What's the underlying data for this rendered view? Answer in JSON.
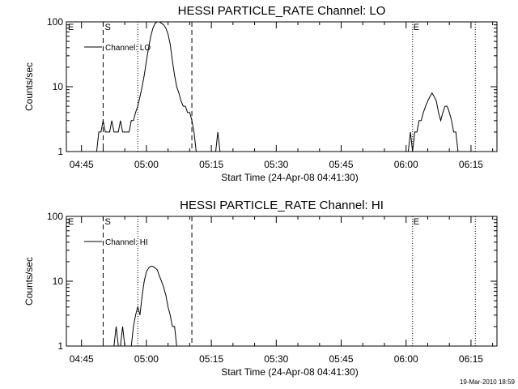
{
  "footer_date": "19-Mar-2010 18:59",
  "chart_data": [
    {
      "type": "line",
      "title": "HESSI PARTICLE_RATE Channel: LO",
      "xlabel": "Start Time (24-Apr-08 04:41:30)",
      "ylabel": "Counts/sec",
      "yscale": "log",
      "ylim": [
        1,
        100
      ],
      "xlim": [
        "04:41:30",
        "06:21:00"
      ],
      "yticks": [
        "1",
        "10",
        "100"
      ],
      "xticks": [
        "04:45",
        "05:00",
        "05:15",
        "05:30",
        "05:45",
        "06:00",
        "06:15"
      ],
      "legend": "Channel: LO",
      "legend_position": "top-left",
      "markers": {
        "E_left": "E",
        "S": "S",
        "E_right": "E",
        "S_time": "04:50:00",
        "E_right_time": "06:01:30",
        "dotted": [
          "04:58:00",
          "06:16:00"
        ],
        "dashed_end": "05:10:30"
      },
      "series": [
        {
          "values_x": [
            "04:48:30",
            "04:49:00",
            "04:49:30",
            "04:50:00",
            "04:50:30",
            "04:51:00",
            "04:51:30",
            "04:52:00",
            "04:52:30",
            "04:53:00",
            "04:53:30",
            "04:54:00",
            "04:54:30",
            "04:55:00",
            "04:55:30",
            "04:56:00",
            "04:56:30",
            "04:57:00",
            "04:57:30",
            "04:58:00",
            "04:58:30",
            "04:59:00",
            "04:59:30",
            "05:00:00",
            "05:00:30",
            "05:01:00",
            "05:01:30",
            "05:02:00",
            "05:02:30",
            "05:03:00",
            "05:03:30",
            "05:04:00",
            "05:04:30",
            "05:05:00",
            "05:05:30",
            "05:06:00",
            "05:06:30",
            "05:07:00",
            "05:07:30",
            "05:08:00",
            "05:08:30",
            "05:09:00",
            "05:09:30",
            "05:10:00",
            "05:10:30",
            "05:11:00",
            "05:11:30",
            "05:12:00",
            "05:12:30",
            "05:13:00",
            "05:13:30",
            "05:14:00",
            "05:14:30",
            "05:15:00",
            "05:15:30",
            "05:16:00",
            "05:16:30",
            "05:17:00"
          ],
          "values_y": [
            1,
            2,
            2,
            3,
            2,
            2,
            2,
            3,
            2,
            2,
            2,
            3,
            2,
            2,
            2,
            2,
            3,
            3,
            4,
            5,
            7,
            10,
            15,
            25,
            40,
            60,
            80,
            95,
            100,
            100,
            95,
            90,
            80,
            65,
            45,
            25,
            15,
            10,
            8,
            6,
            5,
            5,
            4,
            4,
            3,
            2,
            1,
            1,
            1,
            1,
            1,
            1,
            1,
            1,
            1,
            1,
            2,
            1
          ]
        },
        {
          "values_x": [
            "06:00:30",
            "06:01:00",
            "06:01:30",
            "06:02:00",
            "06:02:30",
            "06:03:00",
            "06:03:30",
            "06:04:00",
            "06:04:30",
            "06:05:00",
            "06:05:30",
            "06:06:00",
            "06:06:30",
            "06:07:00",
            "06:07:30",
            "06:08:00",
            "06:08:30",
            "06:09:00",
            "06:09:30",
            "06:10:00",
            "06:10:30",
            "06:11:00",
            "06:11:30",
            "06:12:00"
          ],
          "values_y": [
            1,
            2,
            1,
            2,
            2,
            3,
            3,
            4,
            5,
            6,
            7,
            8,
            7,
            6,
            4,
            3,
            4,
            5,
            5,
            4,
            3,
            2,
            2,
            1
          ]
        }
      ]
    },
    {
      "type": "line",
      "title": "HESSI PARTICLE_RATE Channel: HI",
      "xlabel": "Start Time (24-Apr-08 04:41:30)",
      "ylabel": "Counts/sec",
      "yscale": "log",
      "ylim": [
        1,
        100
      ],
      "xlim": [
        "04:41:30",
        "06:21:00"
      ],
      "yticks": [
        "1",
        "10",
        "100"
      ],
      "xticks": [
        "04:45",
        "05:00",
        "05:15",
        "05:30",
        "05:45",
        "06:00",
        "06:15"
      ],
      "legend": "Channel: HI",
      "legend_position": "top-left",
      "markers": {
        "E_left": "E",
        "S": "S",
        "E_right": "E",
        "S_time": "04:50:00",
        "E_right_time": "06:01:30",
        "dotted": [
          "04:58:00",
          "06:16:00"
        ],
        "dashed_end": "05:10:30"
      },
      "series": [
        {
          "values_x": [
            "04:52:30",
            "04:53:00",
            "04:53:30",
            "04:54:00",
            "04:54:30",
            "04:55:00",
            "04:55:30",
            "04:56:00",
            "04:56:30",
            "04:57:00",
            "04:57:30",
            "04:58:00",
            "04:58:30",
            "04:59:00",
            "04:59:30",
            "05:00:00",
            "05:00:30",
            "05:01:00",
            "05:01:30",
            "05:02:00",
            "05:02:30",
            "05:03:00",
            "05:03:30",
            "05:04:00",
            "05:04:30",
            "05:05:00",
            "05:05:30",
            "05:06:00",
            "05:06:30",
            "05:07:00",
            "05:07:30"
          ],
          "values_y": [
            1,
            2,
            1,
            1,
            2,
            1,
            1,
            1,
            1,
            2,
            3,
            4,
            3,
            6,
            10,
            14,
            16,
            17,
            17,
            16,
            15,
            12,
            10,
            8,
            6,
            4,
            3,
            2,
            2,
            1,
            1
          ]
        }
      ]
    }
  ]
}
